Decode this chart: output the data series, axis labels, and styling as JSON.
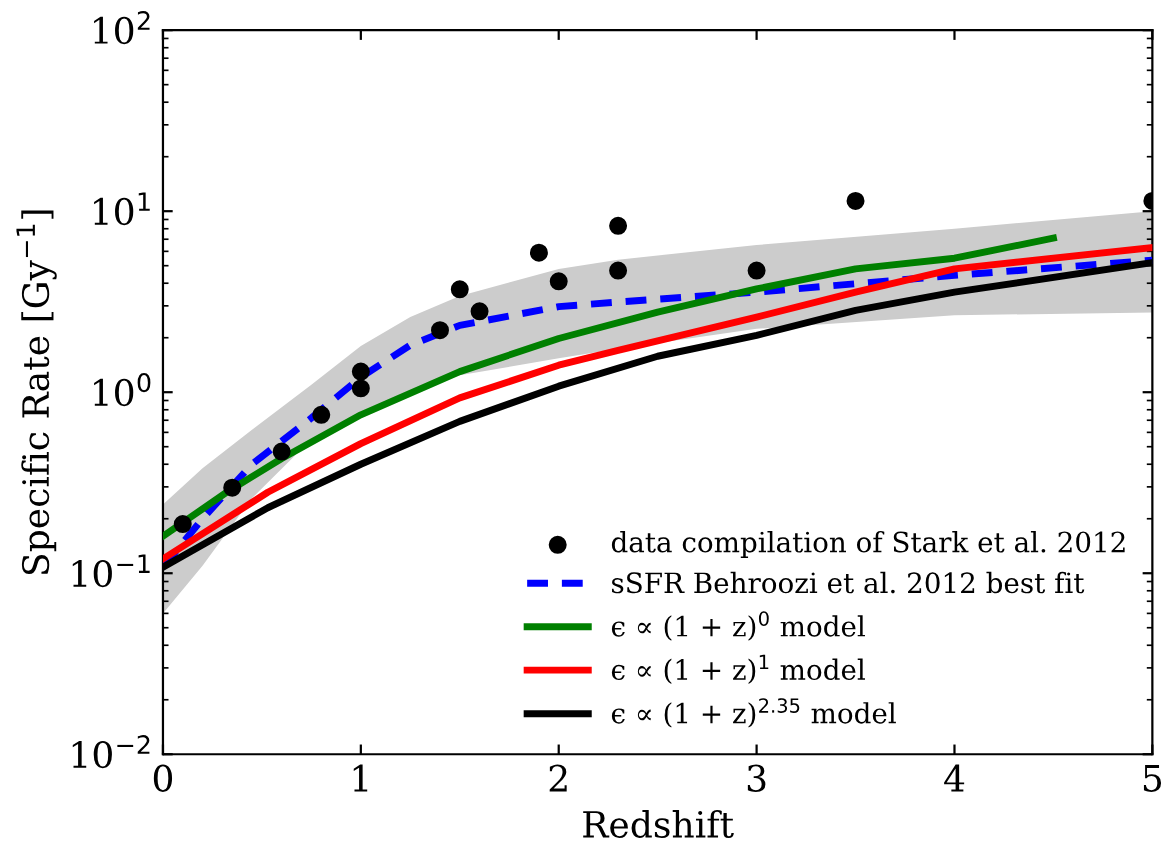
{
  "chart_data": {
    "type": "line",
    "xlabel": "Redshift",
    "ylabel": "Specific Rate [Gy$^{−1}$]",
    "log": "y",
    "xlim": [
      0,
      5
    ],
    "xticks": [
      0,
      1,
      2,
      3,
      4,
      5
    ],
    "ylim": [
      0.01,
      100
    ],
    "yticks": [
      {
        "value": 0.01,
        "label": "10$^{−2}$"
      },
      {
        "value": 0.1,
        "label": "10$^{−1}$"
      },
      {
        "value": 1,
        "label": "10$^{0}$"
      },
      {
        "value": 10,
        "label": "10$^{1}$"
      },
      {
        "value": 100,
        "label": "10$^{2}$"
      }
    ],
    "legend": "bottom right",
    "grid": false,
    "series": [
      {
        "name": "data compilation of Stark et al. 2012",
        "type": "scatter",
        "color": "#000000",
        "marker": "circle",
        "x": [
          0.1,
          0.35,
          0.6,
          0.8,
          1.0,
          1.0,
          1.4,
          1.5,
          1.6,
          1.9,
          2.0,
          2.3,
          2.3,
          3.0,
          3.5,
          5.0
        ],
        "values": [
          0.187,
          0.297,
          0.47,
          0.75,
          1.3,
          1.05,
          2.2,
          3.7,
          2.8,
          5.9,
          4.1,
          8.3,
          4.7,
          4.7,
          11.4,
          11.4
        ]
      },
      {
        "name": "sSFR Behroozi et al. 2012 best fit",
        "type": "line",
        "line_style": "dashed",
        "color": "#0000ff",
        "x": [
          0,
          0.2,
          0.45,
          0.75,
          1.0,
          1.25,
          1.5,
          2.0,
          2.3,
          3.0,
          4.0,
          5.0
        ],
        "values": [
          0.108,
          0.2,
          0.4,
          0.72,
          1.21,
          1.82,
          2.34,
          2.97,
          3.15,
          3.57,
          4.42,
          5.36
        ],
        "lower": [
          0.06,
          0.11,
          0.26,
          0.55,
          0.78,
          1.02,
          1.24,
          1.54,
          1.74,
          2.24,
          2.66,
          2.76
        ],
        "upper": [
          0.24,
          0.38,
          0.62,
          1.1,
          1.8,
          2.6,
          3.4,
          4.8,
          5.4,
          6.5,
          8.0,
          10.0
        ]
      },
      {
        "name": "ϵ ∝ (1 + z)$^{0}$ model",
        "color": "#008000",
        "x": [
          0,
          0.33,
          0.6,
          1.0,
          1.5,
          2.0,
          2.5,
          3.0,
          3.5,
          4.0,
          4.5
        ],
        "values": [
          0.16,
          0.284,
          0.43,
          0.75,
          1.3,
          1.98,
          2.77,
          3.72,
          4.8,
          5.5,
          7.1
        ]
      },
      {
        "name": "ϵ ∝ (1 + z)$^{1}$ model",
        "color": "#ff0000",
        "x": [
          0,
          0.53,
          1.0,
          1.5,
          2.0,
          2.3,
          3.0,
          3.5,
          4.0,
          5.0
        ],
        "values": [
          0.12,
          0.28,
          0.52,
          0.93,
          1.41,
          1.7,
          2.6,
          3.57,
          4.8,
          6.3
        ]
      },
      {
        "name": "ϵ ∝ (1 + z)$^{2.35}$ model",
        "color": "#000000",
        "x": [
          0,
          0.53,
          1.0,
          1.5,
          2.0,
          2.5,
          3.0,
          3.5,
          4.0,
          5.0
        ],
        "values": [
          0.108,
          0.23,
          0.4,
          0.69,
          1.08,
          1.58,
          2.06,
          2.83,
          3.57,
          5.2
        ]
      }
    ]
  }
}
